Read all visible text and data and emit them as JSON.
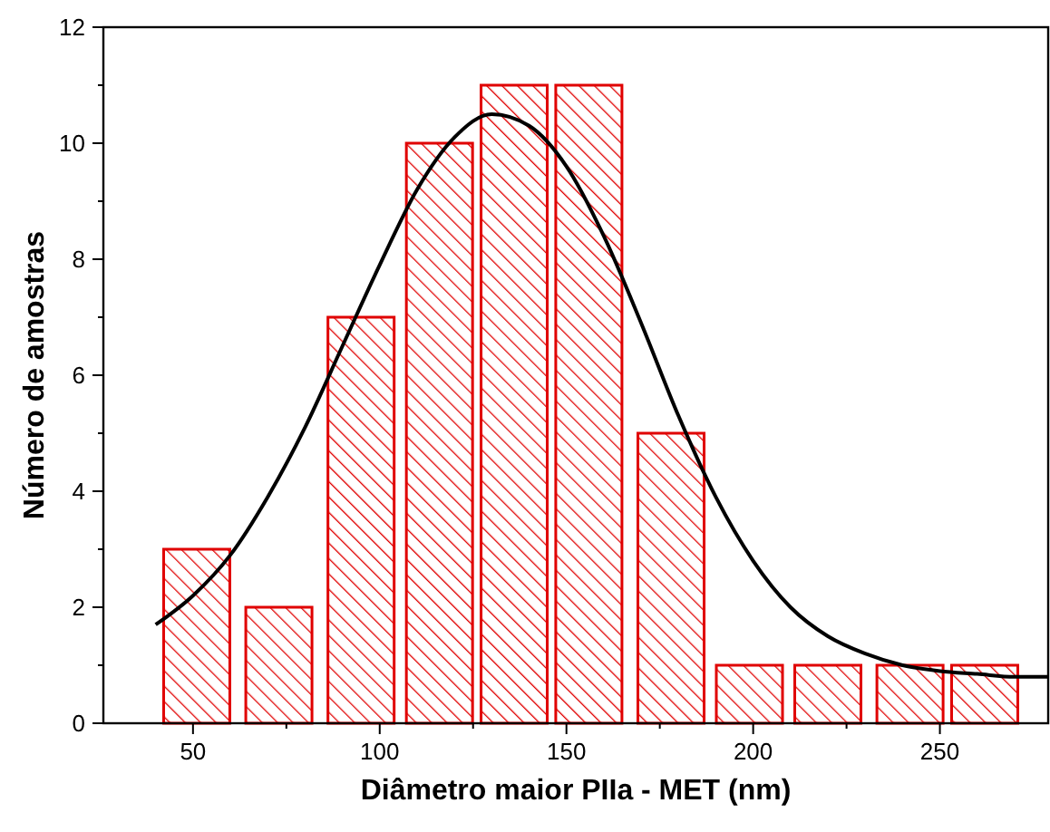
{
  "chart_data": {
    "type": "bar",
    "xlabel": "Diâmetro maior PIIa - MET (nm)",
    "ylabel": "Número de amostras",
    "xlim": [
      26,
      279
    ],
    "xticks": [
      50,
      100,
      150,
      200,
      250
    ],
    "ylim": [
      0,
      12
    ],
    "yticks": [
      0,
      2,
      4,
      6,
      8,
      10,
      12
    ],
    "grid": false,
    "series": [
      {
        "color": "#e00000",
        "x": [
          51,
          73,
          95,
          116,
          136,
          156,
          178,
          199,
          220,
          242,
          262
        ],
        "values": [
          3,
          2,
          7,
          10,
          11,
          11,
          5,
          1,
          1,
          1,
          1
        ]
      },
      {
        "type": "line",
        "color": "#000000",
        "x": [
          40,
          50,
          60,
          70,
          80,
          90,
          100,
          110,
          120,
          130,
          140,
          150,
          160,
          170,
          180,
          190,
          200,
          210,
          220,
          230,
          240,
          250,
          260,
          270,
          279
        ],
        "values": [
          1.7,
          2.2,
          2.9,
          3.9,
          5.1,
          6.5,
          7.9,
          9.2,
          10.1,
          10.5,
          10.3,
          9.6,
          8.4,
          6.9,
          5.3,
          3.9,
          2.8,
          2.0,
          1.5,
          1.2,
          1.0,
          0.9,
          0.85,
          0.8,
          0.8
        ]
      }
    ]
  }
}
